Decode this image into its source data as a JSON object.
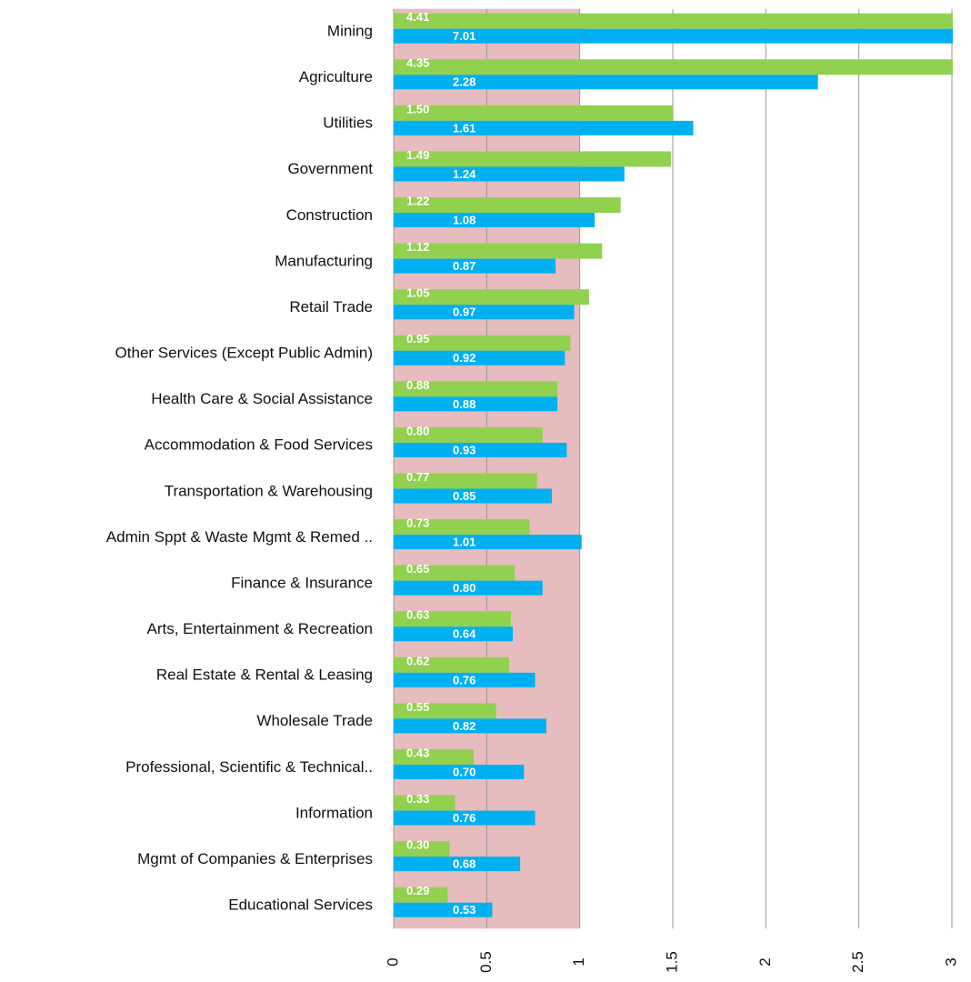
{
  "chart_data": {
    "type": "bar",
    "orientation": "horizontal",
    "categories": [
      "Mining",
      "Agriculture",
      "Utilities",
      "Government",
      "Construction",
      "Manufacturing",
      "Retail Trade",
      "Other Services (Except Public Admin)",
      "Health Care & Social Assistance",
      "Accommodation & Food Services",
      "Transportation & Warehousing",
      "Admin Sppt & Waste Mgmt & Remed ..",
      "Finance & Insurance",
      "Arts, Entertainment & Recreation",
      "Real Estate & Rental & Leasing",
      "Wholesale Trade",
      "Professional, Scientific & Technical..",
      "Information",
      "Mgmt of Companies & Enterprises",
      "Educational Services"
    ],
    "series": [
      {
        "color": "#92d050",
        "values": [
          4.41,
          4.35,
          1.5,
          1.49,
          1.22,
          1.12,
          1.05,
          0.95,
          0.88,
          0.8,
          0.77,
          0.73,
          0.65,
          0.63,
          0.62,
          0.55,
          0.43,
          0.33,
          0.3,
          0.29
        ],
        "value_labels": [
          "4.41",
          "4.35",
          "1.50",
          "1.49",
          "1.22",
          "1.12",
          "1.05",
          "0.95",
          "0.88",
          "0.80",
          "0.77",
          "0.73",
          "0.65",
          "0.63",
          "0.62",
          "0.55",
          "0.43",
          "0.33",
          "0.30",
          "0.29"
        ]
      },
      {
        "color": "#00b0f0",
        "values": [
          7.01,
          2.28,
          1.61,
          1.24,
          1.08,
          0.87,
          0.97,
          0.92,
          0.88,
          0.93,
          0.85,
          1.01,
          0.8,
          0.64,
          0.76,
          0.82,
          0.7,
          0.76,
          0.68,
          0.53
        ],
        "value_labels": [
          "7.01",
          "2.28",
          "1.61",
          "1.24",
          "1.08",
          "0.87",
          "0.97",
          "0.92",
          "0.88",
          "0.93",
          "0.85",
          "1.01",
          "0.80",
          "0.64",
          "0.76",
          "0.82",
          "0.70",
          "0.76",
          "0.68",
          "0.53"
        ]
      }
    ],
    "xlim": [
      0,
      3
    ],
    "xticks": [
      0,
      0.5,
      1,
      1.5,
      2,
      2.5,
      3
    ],
    "grid": true,
    "highlight_xrange": [
      0,
      1
    ],
    "highlight_color": "#e6bcbe"
  }
}
